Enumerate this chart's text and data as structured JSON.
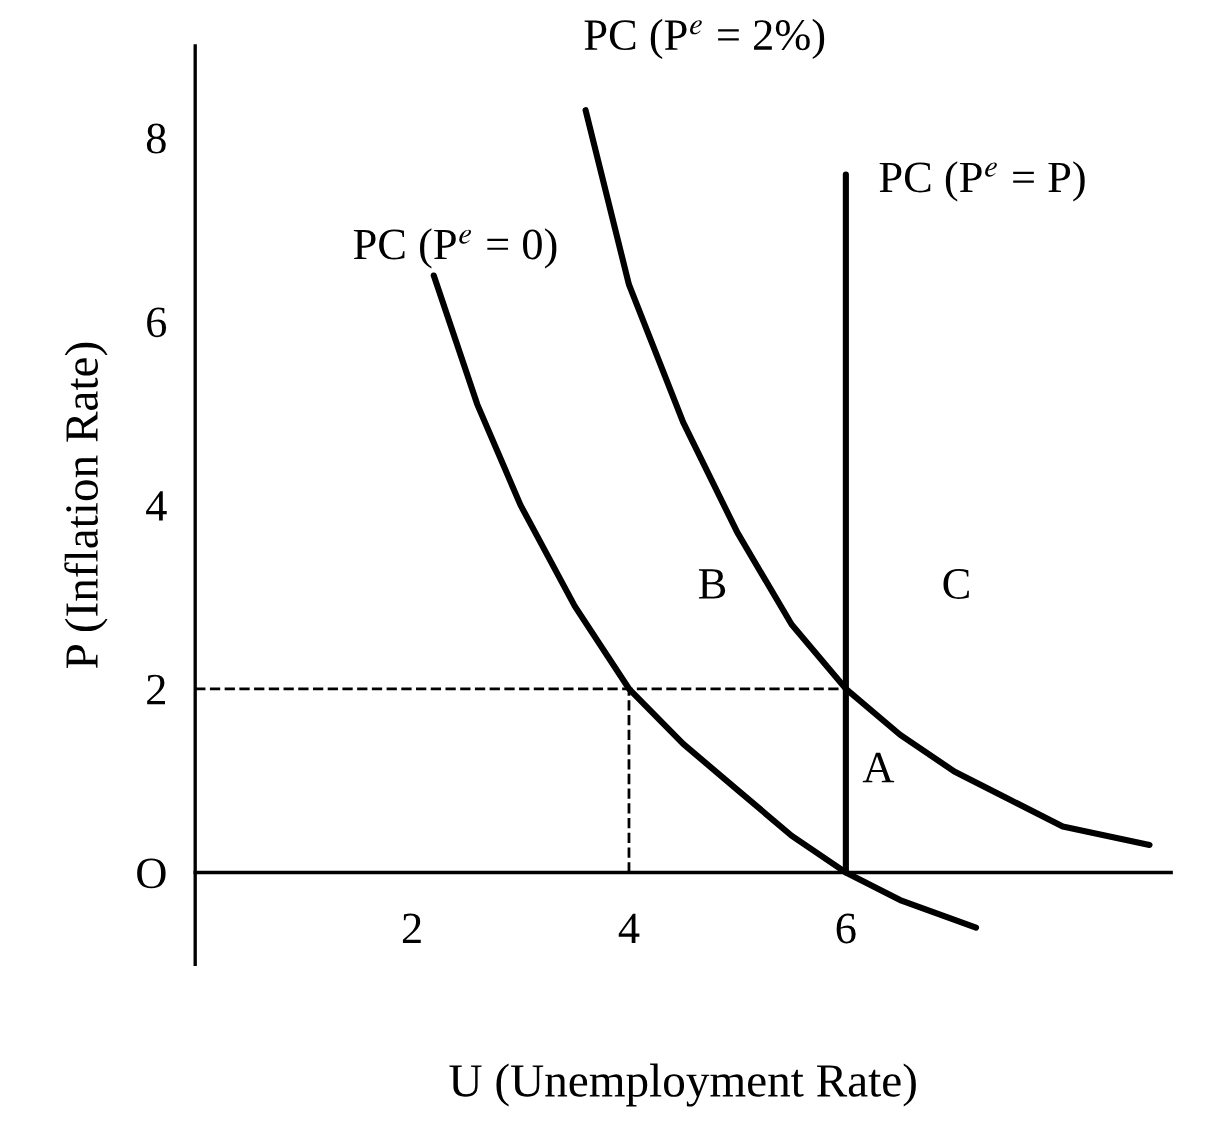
{
  "chart_data": {
    "type": "line",
    "xlabel": "U (Unemployment Rate)",
    "ylabel": "P (Inflation Rate)",
    "xlim": [
      0,
      9
    ],
    "ylim": [
      -1,
      9
    ],
    "xticks": [
      2,
      4,
      6
    ],
    "yticks": [
      {
        "value": 0,
        "label": "O"
      },
      2,
      4,
      6,
      8
    ],
    "grid": false,
    "legend": false,
    "marker": "none",
    "series": [
      {
        "name": "PC (P$^{e}$ = 0)",
        "x": [
          2.2,
          2.6,
          3,
          3.5,
          4,
          4.5,
          5,
          5.5,
          6,
          6.5,
          7.2
        ],
        "values": [
          6.5,
          5.1,
          4,
          2.9,
          2,
          1.4,
          0.9,
          0.4,
          0,
          -0.3,
          -0.6
        ],
        "color": "#000000",
        "line_style": "solid"
      },
      {
        "name": "PC (P$^{e}$ = 2%)",
        "x": [
          3.6,
          4,
          4.5,
          5,
          5.5,
          6,
          6.5,
          7,
          7.5,
          8,
          8.8
        ],
        "values": [
          8.3,
          6.4,
          4.9,
          3.7,
          2.7,
          2,
          1.5,
          1.1,
          0.8,
          0.5,
          0.3
        ],
        "color": "#000000",
        "line_style": "solid"
      },
      {
        "name": "PC (P$^{e}$ = P)",
        "x": [
          6,
          6
        ],
        "values": [
          0,
          7.6
        ],
        "color": "#000000",
        "line_style": "solid"
      },
      {
        "x": [
          0,
          6
        ],
        "values": [
          2,
          2
        ],
        "color": "#000000",
        "line_style": "dashed"
      },
      {
        "x": [
          4,
          4
        ],
        "values": [
          0,
          2
        ],
        "color": "#000000",
        "line_style": "dashed"
      }
    ],
    "annotations": [
      "B",
      "C",
      "A"
    ]
  }
}
